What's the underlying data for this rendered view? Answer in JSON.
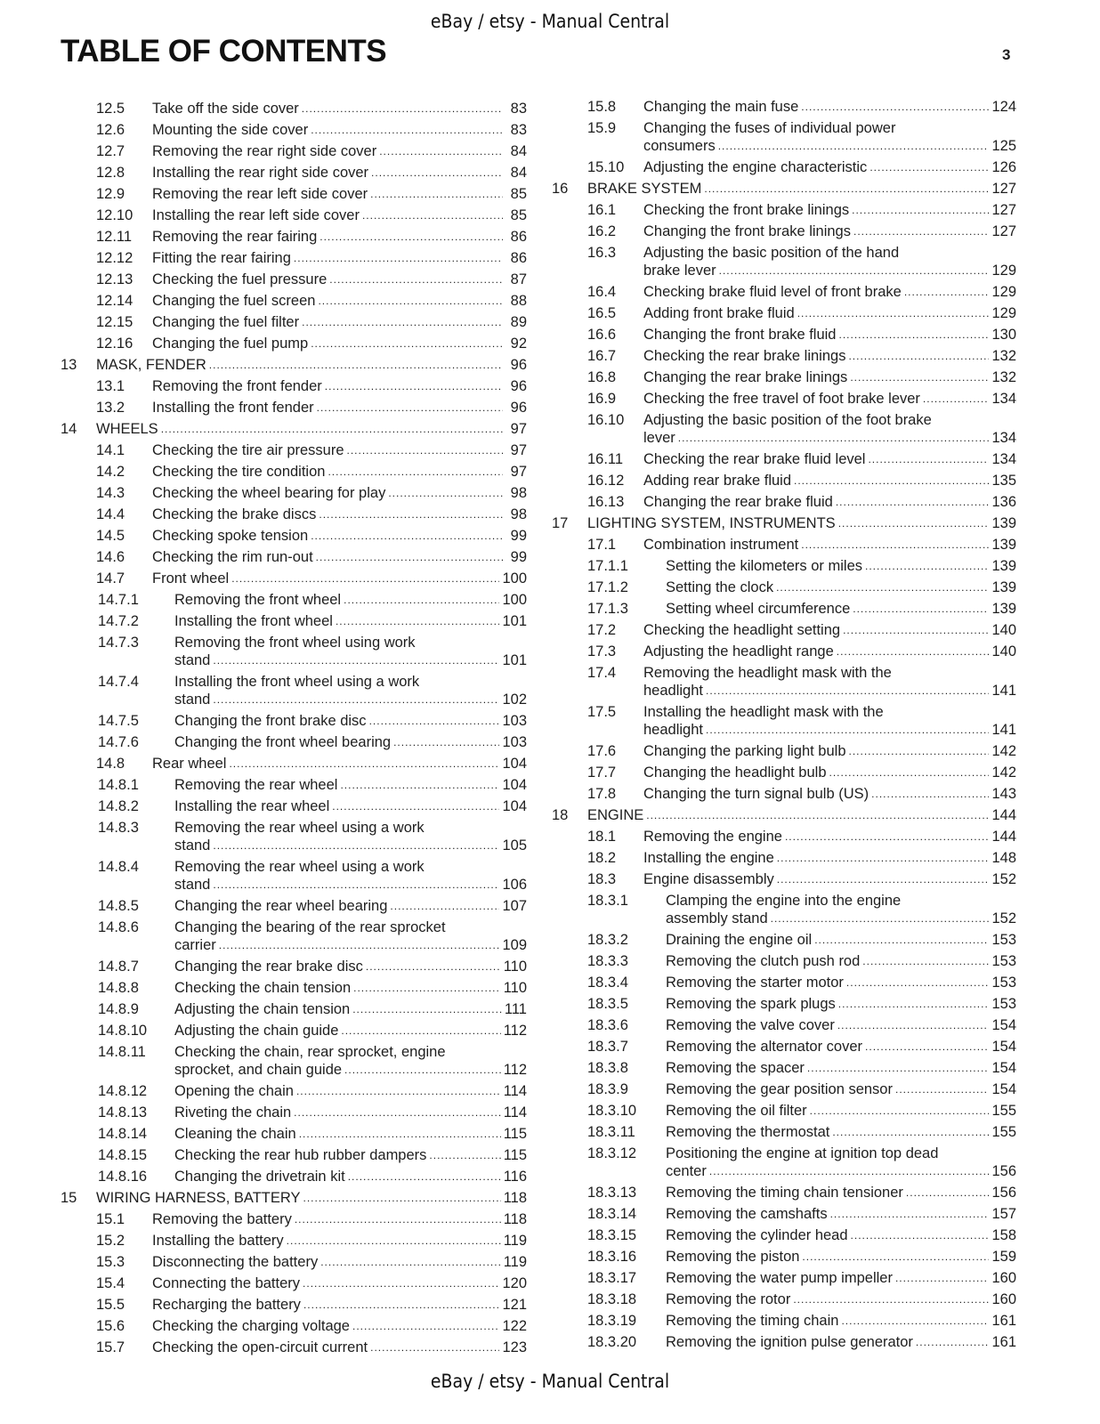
{
  "header": {
    "banner": "eBay / etsy - Manual Central",
    "title": "TABLE OF CONTENTS",
    "page_number": "3"
  },
  "footer": {
    "banner": "eBay / etsy - Manual Central"
  },
  "left_column": [
    {
      "num": "12.5",
      "level": 1,
      "title": "Take off the side cover",
      "page": "83"
    },
    {
      "num": "12.6",
      "level": 1,
      "title": "Mounting the side cover",
      "page": "83"
    },
    {
      "num": "12.7",
      "level": 1,
      "title": "Removing the rear right side cover",
      "page": "84"
    },
    {
      "num": "12.8",
      "level": 1,
      "title": "Installing the rear right side cover",
      "page": "84"
    },
    {
      "num": "12.9",
      "level": 1,
      "title": "Removing the rear left side cover",
      "page": "85"
    },
    {
      "num": "12.10",
      "level": 1,
      "title": "Installing the rear left side cover",
      "page": "85"
    },
    {
      "num": "12.11",
      "level": 1,
      "title": "Removing the rear fairing",
      "page": "86"
    },
    {
      "num": "12.12",
      "level": 1,
      "title": "Fitting the rear fairing",
      "page": "86"
    },
    {
      "num": "12.13",
      "level": 1,
      "title": "Checking the fuel pressure",
      "page": "87"
    },
    {
      "num": "12.14",
      "level": 1,
      "title": "Changing the fuel screen",
      "page": "88"
    },
    {
      "num": "12.15",
      "level": 1,
      "title": "Changing the fuel filter",
      "page": "89"
    },
    {
      "num": "12.16",
      "level": 1,
      "title": "Changing the fuel pump",
      "page": "92"
    },
    {
      "num": "13",
      "level": 0,
      "title": "MASK, FENDER",
      "page": "96"
    },
    {
      "num": "13.1",
      "level": 1,
      "title": "Removing the front fender",
      "page": "96"
    },
    {
      "num": "13.2",
      "level": 1,
      "title": "Installing the front fender",
      "page": "96"
    },
    {
      "num": "14",
      "level": 0,
      "title": "WHEELS",
      "page": "97"
    },
    {
      "num": "14.1",
      "level": 1,
      "title": "Checking the tire air pressure",
      "page": "97"
    },
    {
      "num": "14.2",
      "level": 1,
      "title": "Checking the tire condition",
      "page": "97"
    },
    {
      "num": "14.3",
      "level": 1,
      "title": "Checking the wheel bearing for play",
      "page": "98"
    },
    {
      "num": "14.4",
      "level": 1,
      "title": "Checking the brake discs",
      "page": "98"
    },
    {
      "num": "14.5",
      "level": 1,
      "title": "Checking spoke tension",
      "page": "99"
    },
    {
      "num": "14.6",
      "level": 1,
      "title": "Checking the rim run-out",
      "page": "99"
    },
    {
      "num": "14.7",
      "level": 1,
      "title": "Front wheel",
      "page": "100"
    },
    {
      "num": "14.7.1",
      "level": 2,
      "title": "Removing the front wheel",
      "page": "100"
    },
    {
      "num": "14.7.2",
      "level": 2,
      "title": "Installing the front wheel",
      "page": "101"
    },
    {
      "num": "14.7.3",
      "level": 2,
      "title": "Removing the front wheel using work",
      "title2": "stand",
      "page": "101"
    },
    {
      "num": "14.7.4",
      "level": 2,
      "title": "Installing the front wheel using a work",
      "title2": "stand",
      "page": "102"
    },
    {
      "num": "14.7.5",
      "level": 2,
      "title": "Changing the front brake disc",
      "page": "103"
    },
    {
      "num": "14.7.6",
      "level": 2,
      "title": "Changing the front wheel bearing",
      "page": "103"
    },
    {
      "num": "14.8",
      "level": 1,
      "title": "Rear wheel",
      "page": "104"
    },
    {
      "num": "14.8.1",
      "level": 2,
      "title": "Removing the rear wheel",
      "page": "104"
    },
    {
      "num": "14.8.2",
      "level": 2,
      "title": "Installing the rear wheel",
      "page": "104"
    },
    {
      "num": "14.8.3",
      "level": 2,
      "title": "Removing the rear wheel using a work",
      "title2": "stand",
      "page": "105"
    },
    {
      "num": "14.8.4",
      "level": 2,
      "title": "Removing the rear wheel using a work",
      "title2": "stand",
      "page": "106"
    },
    {
      "num": "14.8.5",
      "level": 2,
      "title": "Changing the rear wheel bearing",
      "page": "107"
    },
    {
      "num": "14.8.6",
      "level": 2,
      "title": "Changing the bearing of the rear sprocket",
      "title2": "carrier",
      "page": "109"
    },
    {
      "num": "14.8.7",
      "level": 2,
      "title": "Changing the rear brake disc",
      "page": "110"
    },
    {
      "num": "14.8.8",
      "level": 2,
      "title": "Checking the chain tension",
      "page": "110"
    },
    {
      "num": "14.8.9",
      "level": 2,
      "title": "Adjusting the chain tension",
      "page": "111"
    },
    {
      "num": "14.8.10",
      "level": 2,
      "title": "Adjusting the chain guide",
      "page": "112"
    },
    {
      "num": "14.8.11",
      "level": 2,
      "title": "Checking the chain, rear sprocket, engine",
      "title2": "sprocket, and chain guide",
      "page": "112"
    },
    {
      "num": "14.8.12",
      "level": 2,
      "title": "Opening the chain",
      "page": "114"
    },
    {
      "num": "14.8.13",
      "level": 2,
      "title": "Riveting the chain",
      "page": "114"
    },
    {
      "num": "14.8.14",
      "level": 2,
      "title": "Cleaning the chain",
      "page": "115"
    },
    {
      "num": "14.8.15",
      "level": 2,
      "title": "Checking the rear hub rubber dampers",
      "page": "115"
    },
    {
      "num": "14.8.16",
      "level": 2,
      "title": "Changing the drivetrain kit",
      "page": "116"
    },
    {
      "num": "15",
      "level": 0,
      "title": "WIRING HARNESS, BATTERY",
      "page": "118"
    },
    {
      "num": "15.1",
      "level": 1,
      "title": "Removing the battery",
      "page": "118"
    },
    {
      "num": "15.2",
      "level": 1,
      "title": "Installing the battery",
      "page": "119"
    },
    {
      "num": "15.3",
      "level": 1,
      "title": "Disconnecting the battery",
      "page": "119"
    },
    {
      "num": "15.4",
      "level": 1,
      "title": "Connecting the battery",
      "page": "120"
    },
    {
      "num": "15.5",
      "level": 1,
      "title": "Recharging the battery",
      "page": "121"
    },
    {
      "num": "15.6",
      "level": 1,
      "title": "Checking the charging voltage",
      "page": "122"
    },
    {
      "num": "15.7",
      "level": 1,
      "title": "Checking the open-circuit current",
      "page": "123"
    }
  ],
  "right_column": [
    {
      "num": "15.8",
      "level": 1,
      "title": "Changing the main fuse",
      "page": "124"
    },
    {
      "num": "15.9",
      "level": 1,
      "title": "Changing the fuses of individual power",
      "title2": "consumers",
      "page": "125"
    },
    {
      "num": "15.10",
      "level": 1,
      "title": "Adjusting the engine characteristic",
      "page": "126"
    },
    {
      "num": "16",
      "level": 0,
      "title": "BRAKE SYSTEM",
      "page": "127"
    },
    {
      "num": "16.1",
      "level": 1,
      "title": "Checking the front brake linings",
      "page": "127"
    },
    {
      "num": "16.2",
      "level": 1,
      "title": "Changing the front brake linings",
      "page": "127"
    },
    {
      "num": "16.3",
      "level": 1,
      "title": "Adjusting the basic position of the hand",
      "title2": "brake lever",
      "page": "129"
    },
    {
      "num": "16.4",
      "level": 1,
      "title": "Checking brake fluid level of front brake",
      "page": "129"
    },
    {
      "num": "16.5",
      "level": 1,
      "title": "Adding front brake fluid",
      "page": "129"
    },
    {
      "num": "16.6",
      "level": 1,
      "title": "Changing the front brake fluid",
      "page": "130"
    },
    {
      "num": "16.7",
      "level": 1,
      "title": "Checking the rear brake linings",
      "page": "132"
    },
    {
      "num": "16.8",
      "level": 1,
      "title": "Changing the rear brake linings",
      "page": "132"
    },
    {
      "num": "16.9",
      "level": 1,
      "title": "Checking the free travel of foot brake lever",
      "page": "134"
    },
    {
      "num": "16.10",
      "level": 1,
      "title": "Adjusting the basic position of the foot brake",
      "title2": "lever",
      "page": "134"
    },
    {
      "num": "16.11",
      "level": 1,
      "title": "Checking the rear brake fluid level",
      "page": "134"
    },
    {
      "num": "16.12",
      "level": 1,
      "title": "Adding rear brake fluid",
      "page": "135"
    },
    {
      "num": "16.13",
      "level": 1,
      "title": "Changing the rear brake fluid",
      "page": "136"
    },
    {
      "num": "17",
      "level": 0,
      "title": "LIGHTING SYSTEM, INSTRUMENTS",
      "page": "139"
    },
    {
      "num": "17.1",
      "level": 1,
      "title": "Combination instrument",
      "page": "139"
    },
    {
      "num": "17.1.1",
      "level": 2,
      "title": "Setting the kilometers or miles",
      "page": "139"
    },
    {
      "num": "17.1.2",
      "level": 2,
      "title": "Setting the clock",
      "page": "139"
    },
    {
      "num": "17.1.3",
      "level": 2,
      "title": "Setting wheel circumference",
      "page": "139"
    },
    {
      "num": "17.2",
      "level": 1,
      "title": "Checking the headlight setting",
      "page": "140"
    },
    {
      "num": "17.3",
      "level": 1,
      "title": "Adjusting the headlight range",
      "page": "140"
    },
    {
      "num": "17.4",
      "level": 1,
      "title": "Removing the headlight mask with the",
      "title2": "headlight",
      "page": "141"
    },
    {
      "num": "17.5",
      "level": 1,
      "title": "Installing the headlight mask with the",
      "title2": "headlight",
      "page": "141"
    },
    {
      "num": "17.6",
      "level": 1,
      "title": "Changing the parking light bulb",
      "page": "142"
    },
    {
      "num": "17.7",
      "level": 1,
      "title": "Changing the headlight bulb",
      "page": "142"
    },
    {
      "num": "17.8",
      "level": 1,
      "title": "Changing the turn signal bulb (US)",
      "page": "143"
    },
    {
      "num": "18",
      "level": 0,
      "title": "ENGINE",
      "page": "144"
    },
    {
      "num": "18.1",
      "level": 1,
      "title": "Removing the engine",
      "page": "144"
    },
    {
      "num": "18.2",
      "level": 1,
      "title": "Installing the engine",
      "page": "148"
    },
    {
      "num": "18.3",
      "level": 1,
      "title": "Engine disassembly",
      "page": "152"
    },
    {
      "num": "18.3.1",
      "level": 2,
      "title": "Clamping the engine into the engine",
      "title2": "assembly stand",
      "page": "152"
    },
    {
      "num": "18.3.2",
      "level": 2,
      "title": "Draining the engine oil",
      "page": "153"
    },
    {
      "num": "18.3.3",
      "level": 2,
      "title": "Removing the clutch push rod",
      "page": "153"
    },
    {
      "num": "18.3.4",
      "level": 2,
      "title": "Removing the starter motor",
      "page": "153"
    },
    {
      "num": "18.3.5",
      "level": 2,
      "title": "Removing the spark plugs",
      "page": "153"
    },
    {
      "num": "18.3.6",
      "level": 2,
      "title": "Removing the valve cover",
      "page": "154"
    },
    {
      "num": "18.3.7",
      "level": 2,
      "title": "Removing the alternator cover",
      "page": "154"
    },
    {
      "num": "18.3.8",
      "level": 2,
      "title": "Removing the spacer",
      "page": "154"
    },
    {
      "num": "18.3.9",
      "level": 2,
      "title": "Removing the gear position sensor",
      "page": "154"
    },
    {
      "num": "18.3.10",
      "level": 2,
      "title": "Removing the oil filter",
      "page": "155"
    },
    {
      "num": "18.3.11",
      "level": 2,
      "title": "Removing the thermostat",
      "page": "155"
    },
    {
      "num": "18.3.12",
      "level": 2,
      "title": "Positioning the engine at ignition top dead",
      "title2": "center",
      "page": "156"
    },
    {
      "num": "18.3.13",
      "level": 2,
      "title": "Removing the timing chain tensioner",
      "page": "156"
    },
    {
      "num": "18.3.14",
      "level": 2,
      "title": "Removing the camshafts",
      "page": "157"
    },
    {
      "num": "18.3.15",
      "level": 2,
      "title": "Removing the cylinder head",
      "page": "158"
    },
    {
      "num": "18.3.16",
      "level": 2,
      "title": "Removing the piston",
      "page": "159"
    },
    {
      "num": "18.3.17",
      "level": 2,
      "title": "Removing the water pump impeller",
      "page": "160"
    },
    {
      "num": "18.3.18",
      "level": 2,
      "title": "Removing the rotor",
      "page": "160"
    },
    {
      "num": "18.3.19",
      "level": 2,
      "title": "Removing the timing chain",
      "page": "161"
    },
    {
      "num": "18.3.20",
      "level": 2,
      "title": "Removing the ignition pulse generator",
      "page": "161"
    }
  ]
}
